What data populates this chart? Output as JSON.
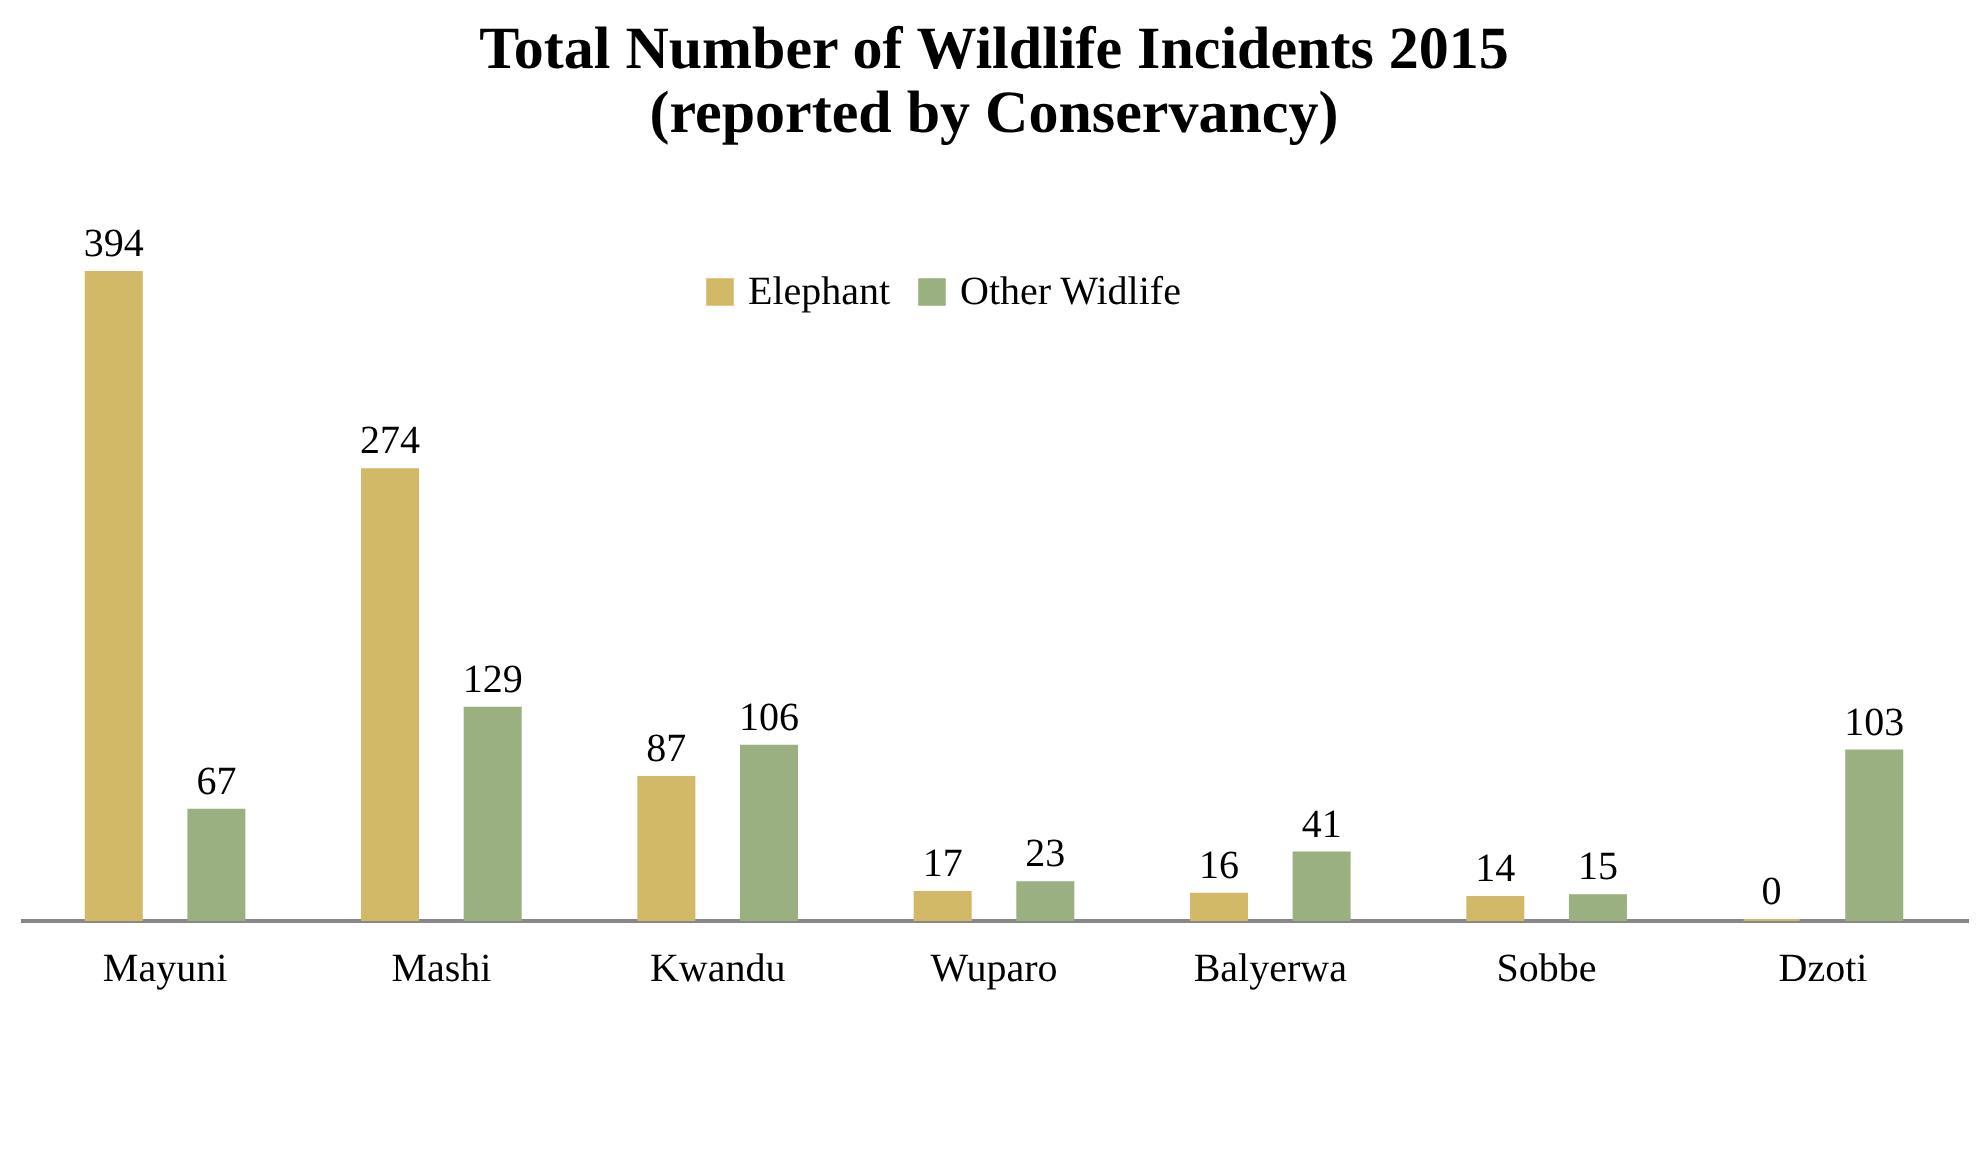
{
  "chart_data": {
    "type": "bar",
    "title": "Total Number of Wildlife Incidents 2015\n(reported by Conservancy)",
    "categories": [
      "Mayuni",
      "Mashi",
      "Kwandu",
      "Wuparo",
      "Balyerwa",
      "Sobbe",
      "Dzoti"
    ],
    "series": [
      {
        "name": "Elephant",
        "color": "#d1b967",
        "values": [
          394,
          274,
          87,
          17,
          16,
          14,
          0
        ]
      },
      {
        "name": "Other Widlife",
        "color": "#9bb081",
        "values": [
          67,
          129,
          106,
          23,
          41,
          15,
          103
        ]
      }
    ],
    "data_labels": true,
    "legend": "top",
    "grid": false
  }
}
